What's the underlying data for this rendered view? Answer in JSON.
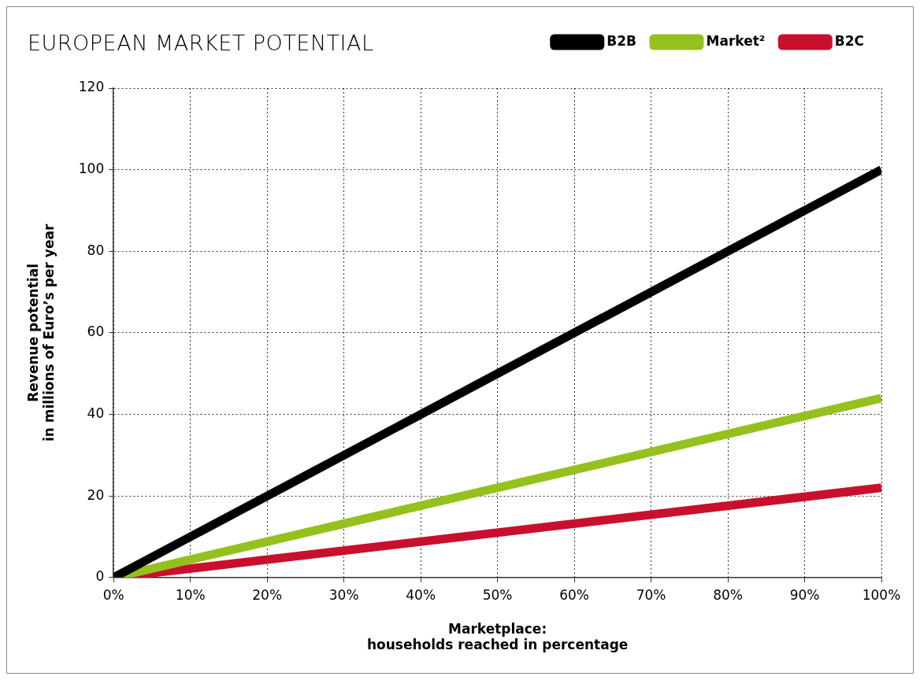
{
  "chart_data": {
    "type": "line",
    "title": "EUROPEAN MARKET POTENTIAL",
    "xlabel": "Marketplace:\nhouseholds reached in percentage",
    "ylabel": "Revenue potential\nin millions of Euro’s per year",
    "x": [
      0,
      100
    ],
    "series": [
      {
        "name": "B2B",
        "color": "#000000",
        "values": [
          0,
          100
        ]
      },
      {
        "name": "Market²",
        "color": "#95c11f",
        "values": [
          0,
          44
        ]
      },
      {
        "name": "B2C",
        "color": "#c8102e",
        "values": [
          0,
          22
        ]
      }
    ],
    "xlim": [
      0,
      100
    ],
    "xticks": [
      {
        "value": 0,
        "label": "0%"
      },
      {
        "value": 10,
        "label": "10%"
      },
      {
        "value": 20,
        "label": "20%"
      },
      {
        "value": 30,
        "label": "30%"
      },
      {
        "value": 40,
        "label": "40%"
      },
      {
        "value": 50,
        "label": "50%"
      },
      {
        "value": 60,
        "label": "60%"
      },
      {
        "value": 70,
        "label": "70%"
      },
      {
        "value": 80,
        "label": "80%"
      },
      {
        "value": 90,
        "label": "90%"
      },
      {
        "value": 100,
        "label": "100%"
      }
    ],
    "ylim": [
      0,
      120
    ],
    "yticks": [
      0,
      20,
      40,
      60,
      80,
      100,
      120
    ],
    "grid": true,
    "legend": "top right",
    "marker": "none",
    "line_style": "solid"
  }
}
